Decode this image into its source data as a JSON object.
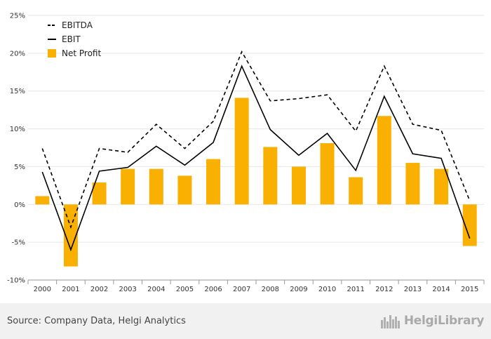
{
  "chart_data": {
    "type": "bar",
    "categories": [
      "2000",
      "2001",
      "2002",
      "2003",
      "2004",
      "2005",
      "2006",
      "2007",
      "2008",
      "2009",
      "2010",
      "2011",
      "2012",
      "2013",
      "2014",
      "2015"
    ],
    "series": [
      {
        "name": "EBITDA",
        "kind": "line",
        "style": "dashed",
        "color": "#000000",
        "values": [
          7.4,
          -3.0,
          7.4,
          6.9,
          10.6,
          7.4,
          11.0,
          20.2,
          13.7,
          14.0,
          14.5,
          9.7,
          18.3,
          10.6,
          9.8,
          0.5
        ]
      },
      {
        "name": "EBIT",
        "kind": "line",
        "style": "solid",
        "color": "#000000",
        "values": [
          4.3,
          -6.0,
          4.4,
          4.9,
          7.7,
          5.2,
          8.2,
          18.3,
          9.9,
          6.5,
          9.4,
          4.5,
          14.3,
          6.7,
          6.1,
          -4.5
        ]
      },
      {
        "name": "Net Profit",
        "kind": "bar",
        "color": "#f9b000",
        "values": [
          1.1,
          -8.2,
          2.9,
          4.7,
          4.7,
          3.8,
          6.0,
          14.1,
          7.6,
          5.0,
          8.1,
          3.6,
          11.7,
          5.5,
          4.7,
          -5.5
        ]
      }
    ],
    "yticks": [
      "25%",
      "20%",
      "15%",
      "10%",
      "5%",
      "0%",
      "-5%",
      "-10%"
    ],
    "ylim": [
      -10,
      25
    ],
    "grid": "horizontal",
    "legend_position": "top-left"
  },
  "footer": {
    "source": "Source: Company Data, Helgi Analytics",
    "brand": "HelgiLibrary",
    "brand_icon": "city-skyline-icon"
  }
}
